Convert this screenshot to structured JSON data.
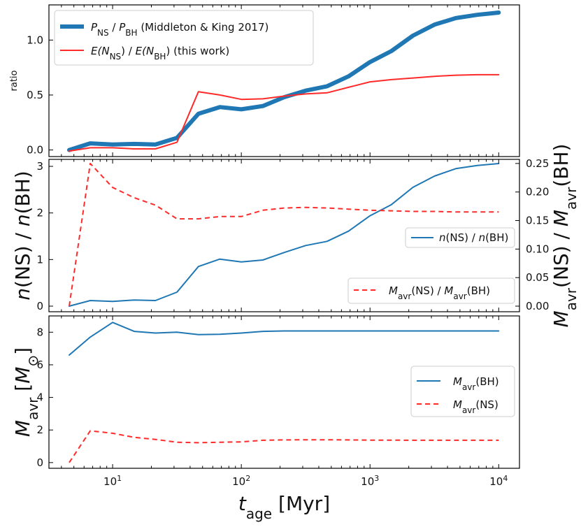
{
  "chart_data": [
    {
      "type": "line",
      "panel": "top",
      "ylabel": "ratio",
      "ylim": [
        -0.06,
        1.32
      ],
      "yticks": [
        0.0,
        0.5,
        1.0
      ],
      "ytick_labels": [
        "0.0",
        "0.5",
        "1.0"
      ],
      "x": [
        4.6,
        6.7,
        10,
        14.7,
        21.5,
        31.6,
        46.4,
        68.1,
        100,
        147,
        215,
        316,
        464,
        681,
        1000,
        1468,
        2154,
        3162,
        4642,
        6813,
        10000
      ],
      "series": [
        {
          "name": "P_NS / P_BH (Middleton & King 2017)",
          "legend": {
            "pre1": "P",
            "sub1": "NS",
            "mid": " / ",
            "pre2": "P",
            "sub2": "BH",
            "post": " (Middleton & King 2017)"
          },
          "color": "#1f77b4",
          "style": "thick",
          "values": [
            0.0,
            0.06,
            0.05,
            0.055,
            0.05,
            0.11,
            0.33,
            0.39,
            0.37,
            0.4,
            0.48,
            0.54,
            0.58,
            0.67,
            0.8,
            0.9,
            1.04,
            1.14,
            1.2,
            1.23,
            1.25
          ]
        },
        {
          "name": "E(N_NS) / E(N_BH) (this work)",
          "legend": {
            "pre1": "E(N",
            "sub1": "NS",
            "mid": ") / ",
            "pre2": "E(N",
            "sub2": "BH",
            "post": ") (this work)"
          },
          "color": "#ff2a2a",
          "style": "solid",
          "values": [
            -0.01,
            0.02,
            0.02,
            0.01,
            0.01,
            0.07,
            0.53,
            0.5,
            0.46,
            0.465,
            0.49,
            0.51,
            0.52,
            0.57,
            0.62,
            0.64,
            0.655,
            0.67,
            0.68,
            0.685,
            0.685
          ]
        }
      ],
      "legend_position": "upper-left"
    },
    {
      "type": "line",
      "panel": "middle",
      "ylabel": "n(NS) / n(BH)",
      "ylabel_right": "M_avr(NS) / M_avr(BH)",
      "ylim": [
        -0.12,
        3.15
      ],
      "yticks": [
        0,
        1,
        2,
        3
      ],
      "ytick_labels": [
        "0",
        "1",
        "2",
        "3"
      ],
      "ylim_right": [
        -0.0098,
        0.2572
      ],
      "yticks_right": [
        0.0,
        0.05,
        0.1,
        0.15,
        0.2,
        0.25
      ],
      "ytick_labels_right": [
        "0.00",
        "0.05",
        "0.10",
        "0.15",
        "0.20",
        "0.25"
      ],
      "x": [
        4.6,
        6.7,
        10,
        14.7,
        21.5,
        31.6,
        46.4,
        68.1,
        100,
        147,
        215,
        316,
        464,
        681,
        1000,
        1468,
        2154,
        3162,
        4642,
        6813,
        10000
      ],
      "series": [
        {
          "name": "n(NS) / n(BH)",
          "axis": "left",
          "color": "#1f77b4",
          "style": "solid",
          "values": [
            0.0,
            0.12,
            0.1,
            0.13,
            0.12,
            0.3,
            0.85,
            1.01,
            0.95,
            0.99,
            1.15,
            1.3,
            1.39,
            1.61,
            1.94,
            2.18,
            2.55,
            2.79,
            2.95,
            3.02,
            3.06
          ]
        },
        {
          "name": "M_avr(NS) / M_avr(BH)",
          "axis": "right",
          "color": "#ff2a2a",
          "style": "dashed",
          "values": [
            0.0,
            0.25,
            0.208,
            0.19,
            0.177,
            0.153,
            0.153,
            0.157,
            0.157,
            0.168,
            0.172,
            0.173,
            0.172,
            0.17,
            0.168,
            0.167,
            0.166,
            0.166,
            0.165,
            0.165,
            0.165
          ]
        }
      ],
      "legend_position": "right"
    },
    {
      "type": "line",
      "panel": "bottom",
      "ylabel": "M_avr [M_⊙]",
      "xlabel": "t_age [Myr]",
      "xscale": "log",
      "xlim": [
        3.2,
        14500
      ],
      "xticks": [
        10,
        100,
        1000,
        10000
      ],
      "xtick_labels": [
        {
          "base": "10",
          "exp": "1"
        },
        {
          "base": "10",
          "exp": "2"
        },
        {
          "base": "10",
          "exp": "3"
        },
        {
          "base": "10",
          "exp": "4"
        }
      ],
      "ylim": [
        -0.35,
        9.0
      ],
      "yticks": [
        0,
        2,
        4,
        6,
        8
      ],
      "ytick_labels": [
        "0",
        "2",
        "4",
        "6",
        "8"
      ],
      "x": [
        4.6,
        6.7,
        10,
        14.7,
        21.5,
        31.6,
        46.4,
        68.1,
        100,
        147,
        215,
        316,
        464,
        681,
        1000,
        1468,
        2154,
        3162,
        4642,
        6813,
        10000
      ],
      "series": [
        {
          "name": "M_avr(BH)",
          "legend": {
            "pre": "M",
            "sub": "avr",
            "post": "(BH)"
          },
          "color": "#1f77b4",
          "style": "solid",
          "values": [
            6.6,
            7.7,
            8.6,
            8.05,
            7.95,
            8.0,
            7.85,
            7.87,
            7.95,
            8.05,
            8.08,
            8.08,
            8.08,
            8.08,
            8.08,
            8.08,
            8.08,
            8.08,
            8.08,
            8.08,
            8.08
          ]
        },
        {
          "name": "M_avr(NS)",
          "legend": {
            "pre": "M",
            "sub": "avr",
            "post": "(NS)"
          },
          "color": "#ff2a2a",
          "style": "dashed",
          "values": [
            0.0,
            1.95,
            1.8,
            1.55,
            1.42,
            1.25,
            1.22,
            1.25,
            1.27,
            1.37,
            1.39,
            1.4,
            1.4,
            1.39,
            1.38,
            1.38,
            1.37,
            1.37,
            1.37,
            1.37,
            1.37
          ]
        }
      ],
      "legend_position": "center-right"
    }
  ],
  "colors": {
    "blue": "#1f77b4",
    "red": "#ff2a2a",
    "axis": "#000000"
  }
}
